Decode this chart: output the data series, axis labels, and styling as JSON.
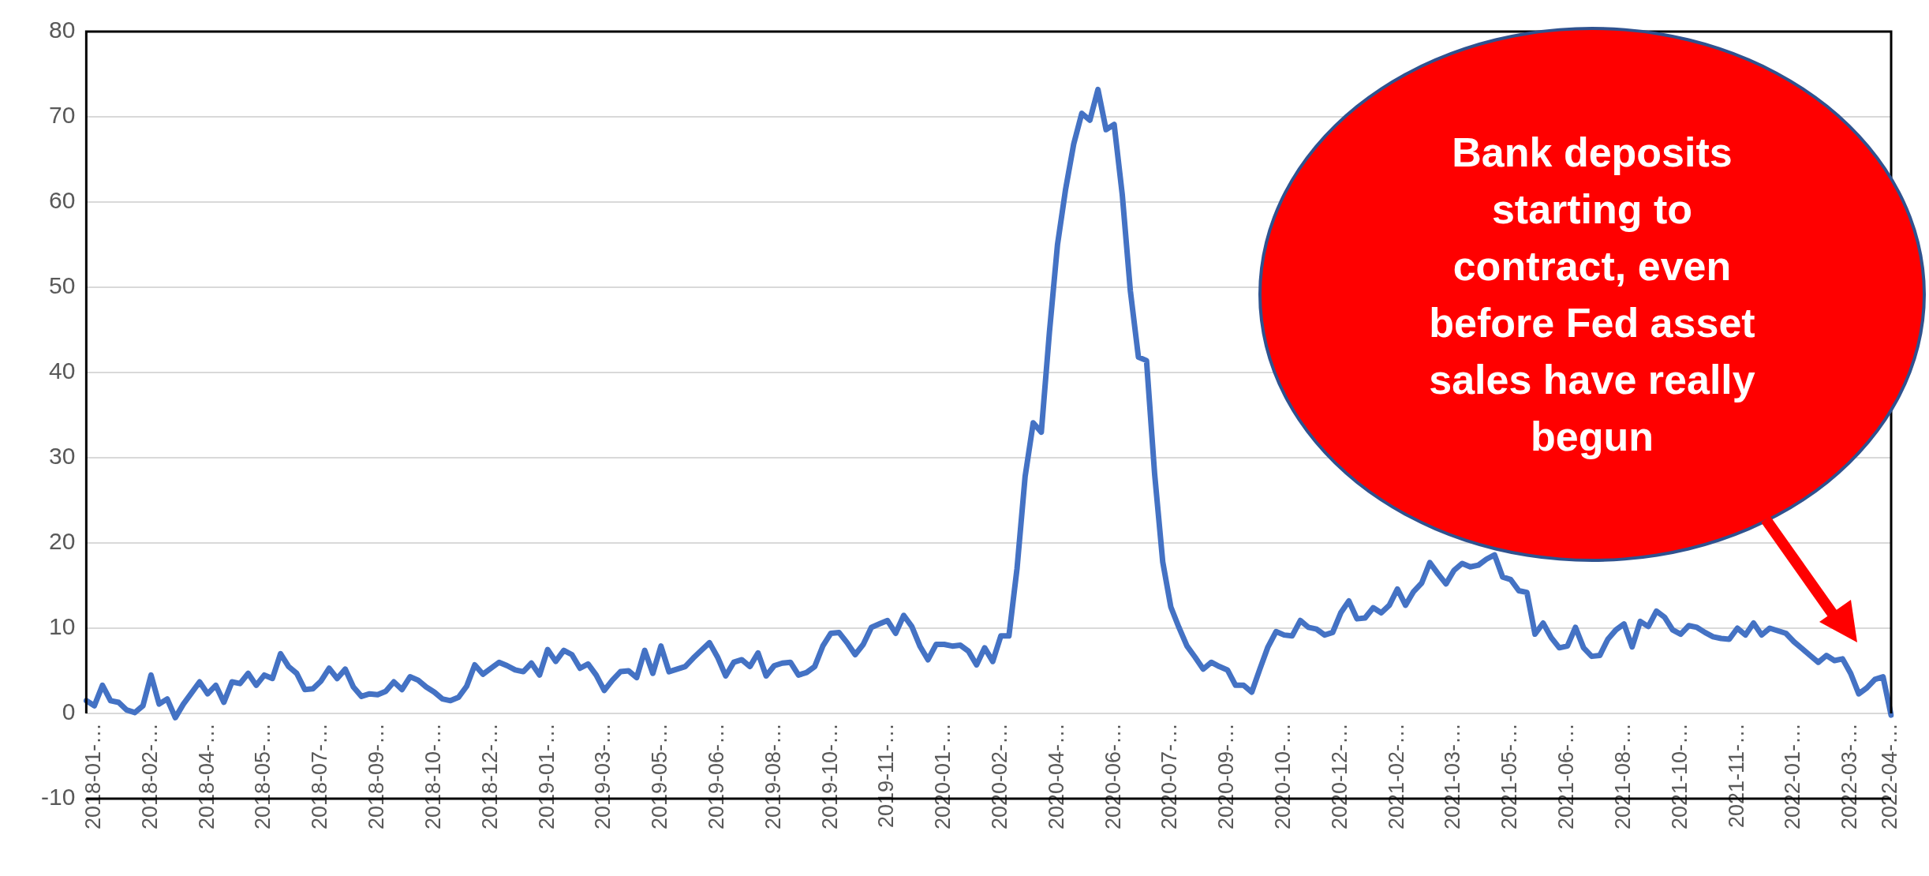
{
  "chart_data": {
    "type": "line",
    "categories": [
      null,
      "2018-01-…",
      null,
      null,
      null,
      null,
      null,
      null,
      "2018-02-…",
      null,
      null,
      null,
      null,
      null,
      null,
      "2018-04-…",
      null,
      null,
      null,
      null,
      null,
      null,
      "2018-05-…",
      null,
      null,
      null,
      null,
      null,
      null,
      "2018-07-…",
      null,
      null,
      null,
      null,
      null,
      null,
      "2018-09-…",
      null,
      null,
      null,
      null,
      null,
      null,
      "2018-10-…",
      null,
      null,
      null,
      null,
      null,
      null,
      "2018-12-…",
      null,
      null,
      null,
      null,
      null,
      null,
      "2019-01-…",
      null,
      null,
      null,
      null,
      null,
      null,
      "2019-03-…",
      null,
      null,
      null,
      null,
      null,
      null,
      "2019-05-…",
      null,
      null,
      null,
      null,
      null,
      null,
      "2019-06-…",
      null,
      null,
      null,
      null,
      null,
      null,
      "2019-08-…",
      null,
      null,
      null,
      null,
      null,
      null,
      "2019-10-…",
      null,
      null,
      null,
      null,
      null,
      null,
      "2019-11-…",
      null,
      null,
      null,
      null,
      null,
      null,
      "2020-01-…",
      null,
      null,
      null,
      null,
      null,
      null,
      "2020-02-…",
      null,
      null,
      null,
      null,
      null,
      null,
      "2020-04-…",
      null,
      null,
      null,
      null,
      null,
      null,
      "2020-06-…",
      null,
      null,
      null,
      null,
      null,
      null,
      "2020-07-…",
      null,
      null,
      null,
      null,
      null,
      null,
      "2020-09-…",
      null,
      null,
      null,
      null,
      null,
      null,
      "2020-10-…",
      null,
      null,
      null,
      null,
      null,
      null,
      "2020-12-…",
      null,
      null,
      null,
      null,
      null,
      null,
      "2021-02-…",
      null,
      null,
      null,
      null,
      null,
      null,
      "2021-03-…",
      null,
      null,
      null,
      null,
      null,
      null,
      "2021-05-…",
      null,
      null,
      null,
      null,
      null,
      null,
      "2021-06-…",
      null,
      null,
      null,
      null,
      null,
      null,
      "2021-08-…",
      null,
      null,
      null,
      null,
      null,
      null,
      "2021-10-…",
      null,
      null,
      null,
      null,
      null,
      null,
      "2021-11-…",
      null,
      null,
      null,
      null,
      null,
      null,
      "2022-01-…",
      null,
      null,
      null,
      null,
      null,
      null,
      "2022-03-…",
      null,
      null,
      null,
      null,
      "2022-04-…"
    ],
    "series": [
      {
        "color": "#4472c4",
        "values": [
          1.5,
          0.9,
          3.3,
          1.5,
          1.3,
          0.4,
          0.1,
          0.9,
          4.5,
          1.1,
          1.7,
          -0.5,
          1.1,
          2.4,
          3.7,
          2.3,
          3.3,
          1.3,
          3.7,
          3.5,
          4.7,
          3.3,
          4.5,
          4.1,
          7.0,
          5.5,
          4.7,
          2.8,
          2.9,
          3.8,
          5.3,
          4.1,
          5.2,
          3.1,
          2.0,
          2.3,
          2.2,
          2.6,
          3.7,
          2.8,
          4.3,
          3.9,
          3.1,
          2.5,
          1.7,
          1.5,
          1.9,
          3.2,
          5.7,
          4.6,
          5.3,
          6.0,
          5.6,
          5.1,
          4.9,
          5.9,
          4.5,
          7.5,
          6.1,
          7.4,
          6.9,
          5.3,
          5.8,
          4.5,
          2.7,
          3.9,
          4.9,
          5.0,
          4.2,
          7.4,
          4.7,
          7.9,
          4.9,
          5.2,
          5.5,
          6.5,
          7.4,
          8.3,
          6.6,
          4.4,
          6.0,
          6.3,
          5.5,
          7.1,
          4.4,
          5.6,
          5.9,
          6.0,
          4.5,
          4.8,
          5.5,
          7.9,
          9.4,
          9.5,
          8.3,
          6.9,
          8.1,
          10.1,
          10.5,
          10.9,
          9.4,
          11.5,
          10.2,
          7.9,
          6.3,
          8.1,
          8.1,
          7.9,
          8.0,
          7.3,
          5.7,
          7.7,
          6.1,
          9.1,
          9.1,
          17.0,
          27.8,
          34.1,
          33.0,
          44.7,
          55.0,
          61.5,
          66.8,
          70.4,
          69.6,
          73.2,
          68.5,
          69.1,
          60.9,
          49.6,
          41.8,
          41.4,
          28.1,
          17.8,
          12.5,
          10.1,
          7.9,
          6.6,
          5.2,
          6.0,
          5.5,
          5.1,
          3.3,
          3.3,
          2.5,
          5.2,
          7.8,
          9.6,
          9.2,
          9.1,
          10.9,
          10.1,
          9.9,
          9.2,
          9.5,
          11.8,
          13.2,
          11.1,
          11.2,
          12.4,
          11.8,
          12.7,
          14.6,
          12.7,
          14.3,
          15.3,
          17.7,
          16.4,
          15.2,
          16.8,
          17.6,
          17.2,
          17.4,
          18.1,
          18.6,
          16.0,
          15.7,
          14.4,
          14.2,
          9.3,
          10.6,
          8.9,
          7.7,
          7.9,
          10.1,
          7.7,
          6.7,
          6.8,
          8.7,
          9.8,
          10.5,
          7.8,
          10.8,
          10.2,
          12.0,
          11.3,
          9.8,
          9.3,
          10.3,
          10.1,
          9.5,
          9.0,
          8.8,
          8.7,
          10.0,
          9.2,
          10.6,
          9.2,
          10.0,
          9.7,
          9.4,
          8.4,
          7.6,
          6.8,
          6.0,
          6.8,
          6.2,
          6.4,
          4.7,
          2.3,
          3.0,
          4.0,
          4.3,
          -0.2
        ]
      }
    ],
    "ylim": [
      -10,
      80
    ],
    "yticks": [
      -10,
      0,
      10,
      20,
      30,
      40,
      50,
      60,
      70,
      80
    ],
    "grid": "y",
    "marker": "none",
    "line_style": "solid",
    "annotations": [
      "Bank deposits starting to contract, even before Fed asset sales have really begun"
    ]
  }
}
